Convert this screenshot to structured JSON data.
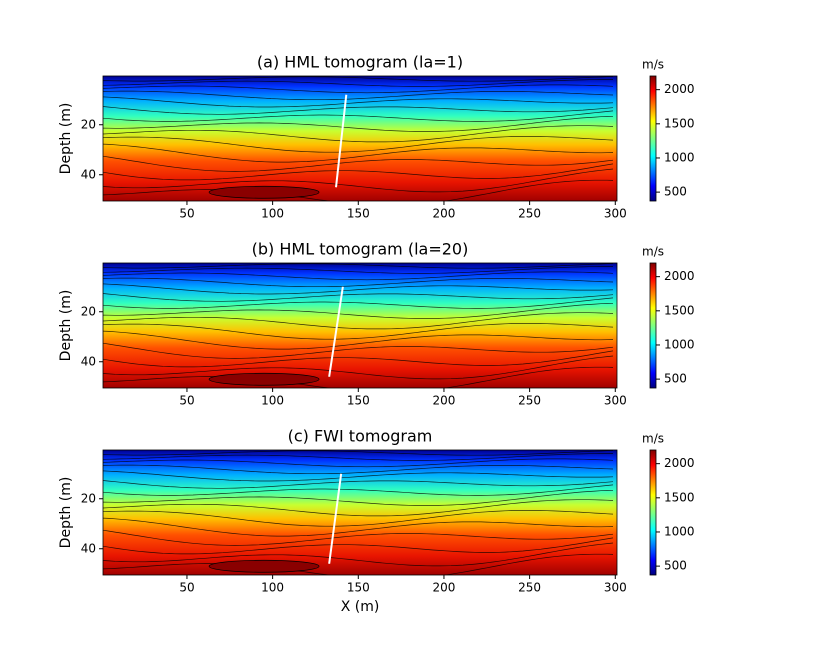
{
  "chart_data": [
    {
      "type": "contour",
      "title": "(a) HML tomogram (la=1)",
      "ylabel": "Depth (m)",
      "xlim": [
        1,
        301
      ],
      "xticks": [
        50,
        100,
        150,
        200,
        250,
        300
      ],
      "ylim": [
        50.5,
        0.5
      ],
      "yticks": [
        20,
        40
      ],
      "colorbar": {
        "label": "m/s",
        "clim": [
          370,
          2200
        ],
        "ticks": [
          500,
          1000,
          1500,
          2000
        ],
        "colormap": "jet"
      },
      "fault": {
        "x": [
          143,
          137
        ],
        "y": [
          8,
          45
        ],
        "color": "#ffffff"
      }
    },
    {
      "type": "contour",
      "title": "(b) HML tomogram (la=20)",
      "ylabel": "Depth (m)",
      "xlim": [
        1,
        301
      ],
      "xticks": [
        50,
        100,
        150,
        200,
        250,
        300
      ],
      "ylim": [
        50.5,
        0.5
      ],
      "yticks": [
        20,
        40
      ],
      "colorbar": {
        "label": "m/s",
        "clim": [
          370,
          2200
        ],
        "ticks": [
          500,
          1000,
          1500,
          2000
        ],
        "colormap": "jet"
      },
      "fault": {
        "x": [
          141,
          133
        ],
        "y": [
          10,
          46
        ],
        "color": "#ffffff"
      }
    },
    {
      "type": "contour",
      "title": "(c) FWI tomogram",
      "xlabel": "X (m)",
      "ylabel": "Depth (m)",
      "xlim": [
        1,
        301
      ],
      "xticks": [
        50,
        100,
        150,
        200,
        250,
        300
      ],
      "ylim": [
        50.5,
        0.5
      ],
      "yticks": [
        20,
        40
      ],
      "colorbar": {
        "label": "m/s",
        "clim": [
          370,
          2200
        ],
        "ticks": [
          500,
          1000,
          1500,
          2000
        ],
        "colormap": "jet"
      },
      "fault": {
        "x": [
          140,
          133
        ],
        "y": [
          10,
          46
        ],
        "color": "#ffffff"
      }
    }
  ]
}
